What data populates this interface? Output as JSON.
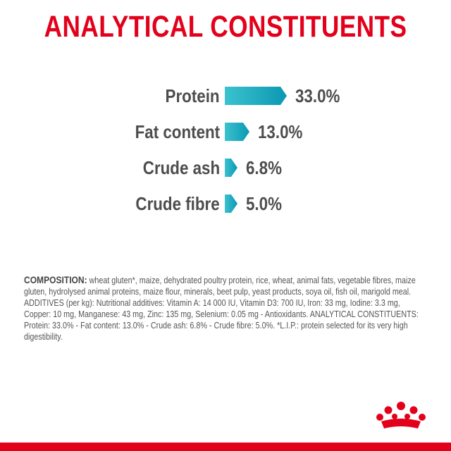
{
  "title": "ANALYTICAL CONSTITUENTS",
  "chart_data": {
    "type": "bar",
    "categories": [
      "Protein",
      "Fat content",
      "Crude ash",
      "Crude fibre"
    ],
    "values": [
      33.0,
      13.0,
      6.8,
      5.0
    ],
    "value_labels": [
      "33.0%",
      "13.0%",
      "6.8%",
      "5.0%"
    ],
    "colors": {
      "bar_start": "#3cc2cf",
      "bar_end": "#0a98b2",
      "title": "#e3001b",
      "text": "#4d4d4d"
    }
  },
  "composition": {
    "lead": "COMPOSITION:",
    "text": " wheat gluten*, maize, dehydrated poultry protein, rice, wheat, animal fats, vegetable fibres, maize gluten, hydrolysed animal proteins, maize flour, minerals, beet pulp, yeast products, soya oil, fish oil, marigold meal. ADDITIVES (per kg): Nutritional additives: Vitamin A: 14 000 IU, Vitamin D3: 700 IU, Iron: 33 mg, Iodine: 3.3 mg, Copper: 10 mg, Manganese: 43 mg, Zinc: 135 mg, Selenium: 0.05 mg - Antioxidants. ANALYTICAL CONSTITUENTS: Protein: 33.0% - Fat content: 13.0% - Crude ash: 6.8% - Crude fibre: 5.0%. *L.I.P.: protein selected for its very high digestibility."
  },
  "logo_icon": "crown-logo-icon"
}
